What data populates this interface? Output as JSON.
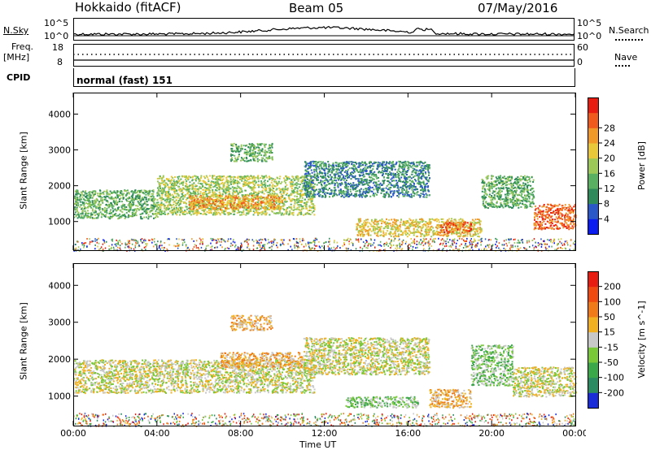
{
  "header": {
    "station": "Hokkaido (fitACF)",
    "beam": "Beam 05",
    "date": "07/May/2016"
  },
  "noise_panel": {
    "left_label": "N.Sky",
    "right_label": "N.Search",
    "tick_top": "10^5",
    "tick_bottom": "10^0"
  },
  "freq_panel": {
    "left_label_1": "Freq.",
    "left_label_2": "[MHz]",
    "left_tick_top": "18",
    "left_tick_bottom": "8",
    "right_label": "Nave",
    "right_tick_top": "60",
    "right_tick_bottom": "0"
  },
  "cpid_panel": {
    "label": "CPID",
    "mode": "normal (fast) 151"
  },
  "chart_data": [
    {
      "type": "heatmap",
      "panel": "power",
      "ylabel": "Slant Range [km]",
      "xlabel": "Time UT",
      "x_ticks": [
        "00:00",
        "04:00",
        "08:00",
        "12:00",
        "16:00",
        "20:00",
        "00:00"
      ],
      "y_ticks": [
        "1000",
        "2000",
        "3000",
        "4000"
      ],
      "ylim": [
        200,
        4600
      ],
      "xlim_hours": [
        0,
        24
      ],
      "colorbar": {
        "label": "Power [dB]",
        "ticks": [
          "4",
          "8",
          "12",
          "16",
          "20",
          "24",
          "28"
        ],
        "colors": [
          "#0b1cf0",
          "#2a58c8",
          "#2e8a5a",
          "#58b060",
          "#9cc858",
          "#e8c838",
          "#f09828",
          "#f05a1c",
          "#e81c10"
        ]
      },
      "regions": [
        {
          "t0": 0.0,
          "t1": 4.0,
          "r0": 1100,
          "r1": 1900,
          "level": 3
        },
        {
          "t0": 4.0,
          "t1": 11.5,
          "r0": 1200,
          "r1": 2300,
          "level": 4
        },
        {
          "t0": 5.5,
          "t1": 10.0,
          "r0": 1350,
          "r1": 1750,
          "level": 6
        },
        {
          "t0": 7.5,
          "t1": 9.5,
          "r0": 2700,
          "r1": 3200,
          "level": 3
        },
        {
          "t0": 11.0,
          "t1": 17.0,
          "r0": 1700,
          "r1": 2700,
          "level": 2
        },
        {
          "t0": 13.5,
          "t1": 19.5,
          "r0": 600,
          "r1": 1100,
          "level": 5
        },
        {
          "t0": 17.5,
          "t1": 19.0,
          "r0": 700,
          "r1": 1000,
          "level": 7
        },
        {
          "t0": 19.5,
          "t1": 22.0,
          "r0": 1400,
          "r1": 2300,
          "level": 3
        },
        {
          "t0": 22.0,
          "t1": 24.0,
          "r0": 800,
          "r1": 1500,
          "level": 7
        }
      ]
    },
    {
      "type": "heatmap",
      "panel": "velocity",
      "ylabel": "Slant Range [km]",
      "xlabel": "Time UT",
      "x_ticks": [
        "00:00",
        "04:00",
        "08:00",
        "12:00",
        "16:00",
        "20:00",
        "00:00"
      ],
      "y_ticks": [
        "1000",
        "2000",
        "3000",
        "4000"
      ],
      "ylim": [
        200,
        4600
      ],
      "xlim_hours": [
        0,
        24
      ],
      "colorbar": {
        "label": "Velocity [m s^-1]",
        "ticks": [
          "200",
          "100",
          "50",
          "15",
          "-15",
          "-50",
          "-100",
          "-200"
        ],
        "colors": [
          "#1a2cd8",
          "#2a8a62",
          "#3aa848",
          "#78c838",
          "#c8c8c8",
          "#f0b020",
          "#f07a18",
          "#f04a10",
          "#e81c10"
        ]
      },
      "regions": [
        {
          "t0": 0.0,
          "t1": 11.5,
          "r0": 1100,
          "r1": 2000,
          "level": 4
        },
        {
          "t0": 7.0,
          "t1": 11.0,
          "r0": 1800,
          "r1": 2200,
          "level": 5
        },
        {
          "t0": 7.5,
          "t1": 9.5,
          "r0": 2800,
          "r1": 3200,
          "level": 5
        },
        {
          "t0": 11.0,
          "t1": 17.0,
          "r0": 1600,
          "r1": 2600,
          "level": 4
        },
        {
          "t0": 13.0,
          "t1": 16.5,
          "r0": 700,
          "r1": 1000,
          "level": 3
        },
        {
          "t0": 17.0,
          "t1": 19.0,
          "r0": 700,
          "r1": 1200,
          "level": 5
        },
        {
          "t0": 19.0,
          "t1": 21.0,
          "r0": 1300,
          "r1": 2400,
          "level": 3
        },
        {
          "t0": 21.0,
          "t1": 24.0,
          "r0": 1000,
          "r1": 1800,
          "level": 4
        }
      ]
    }
  ]
}
